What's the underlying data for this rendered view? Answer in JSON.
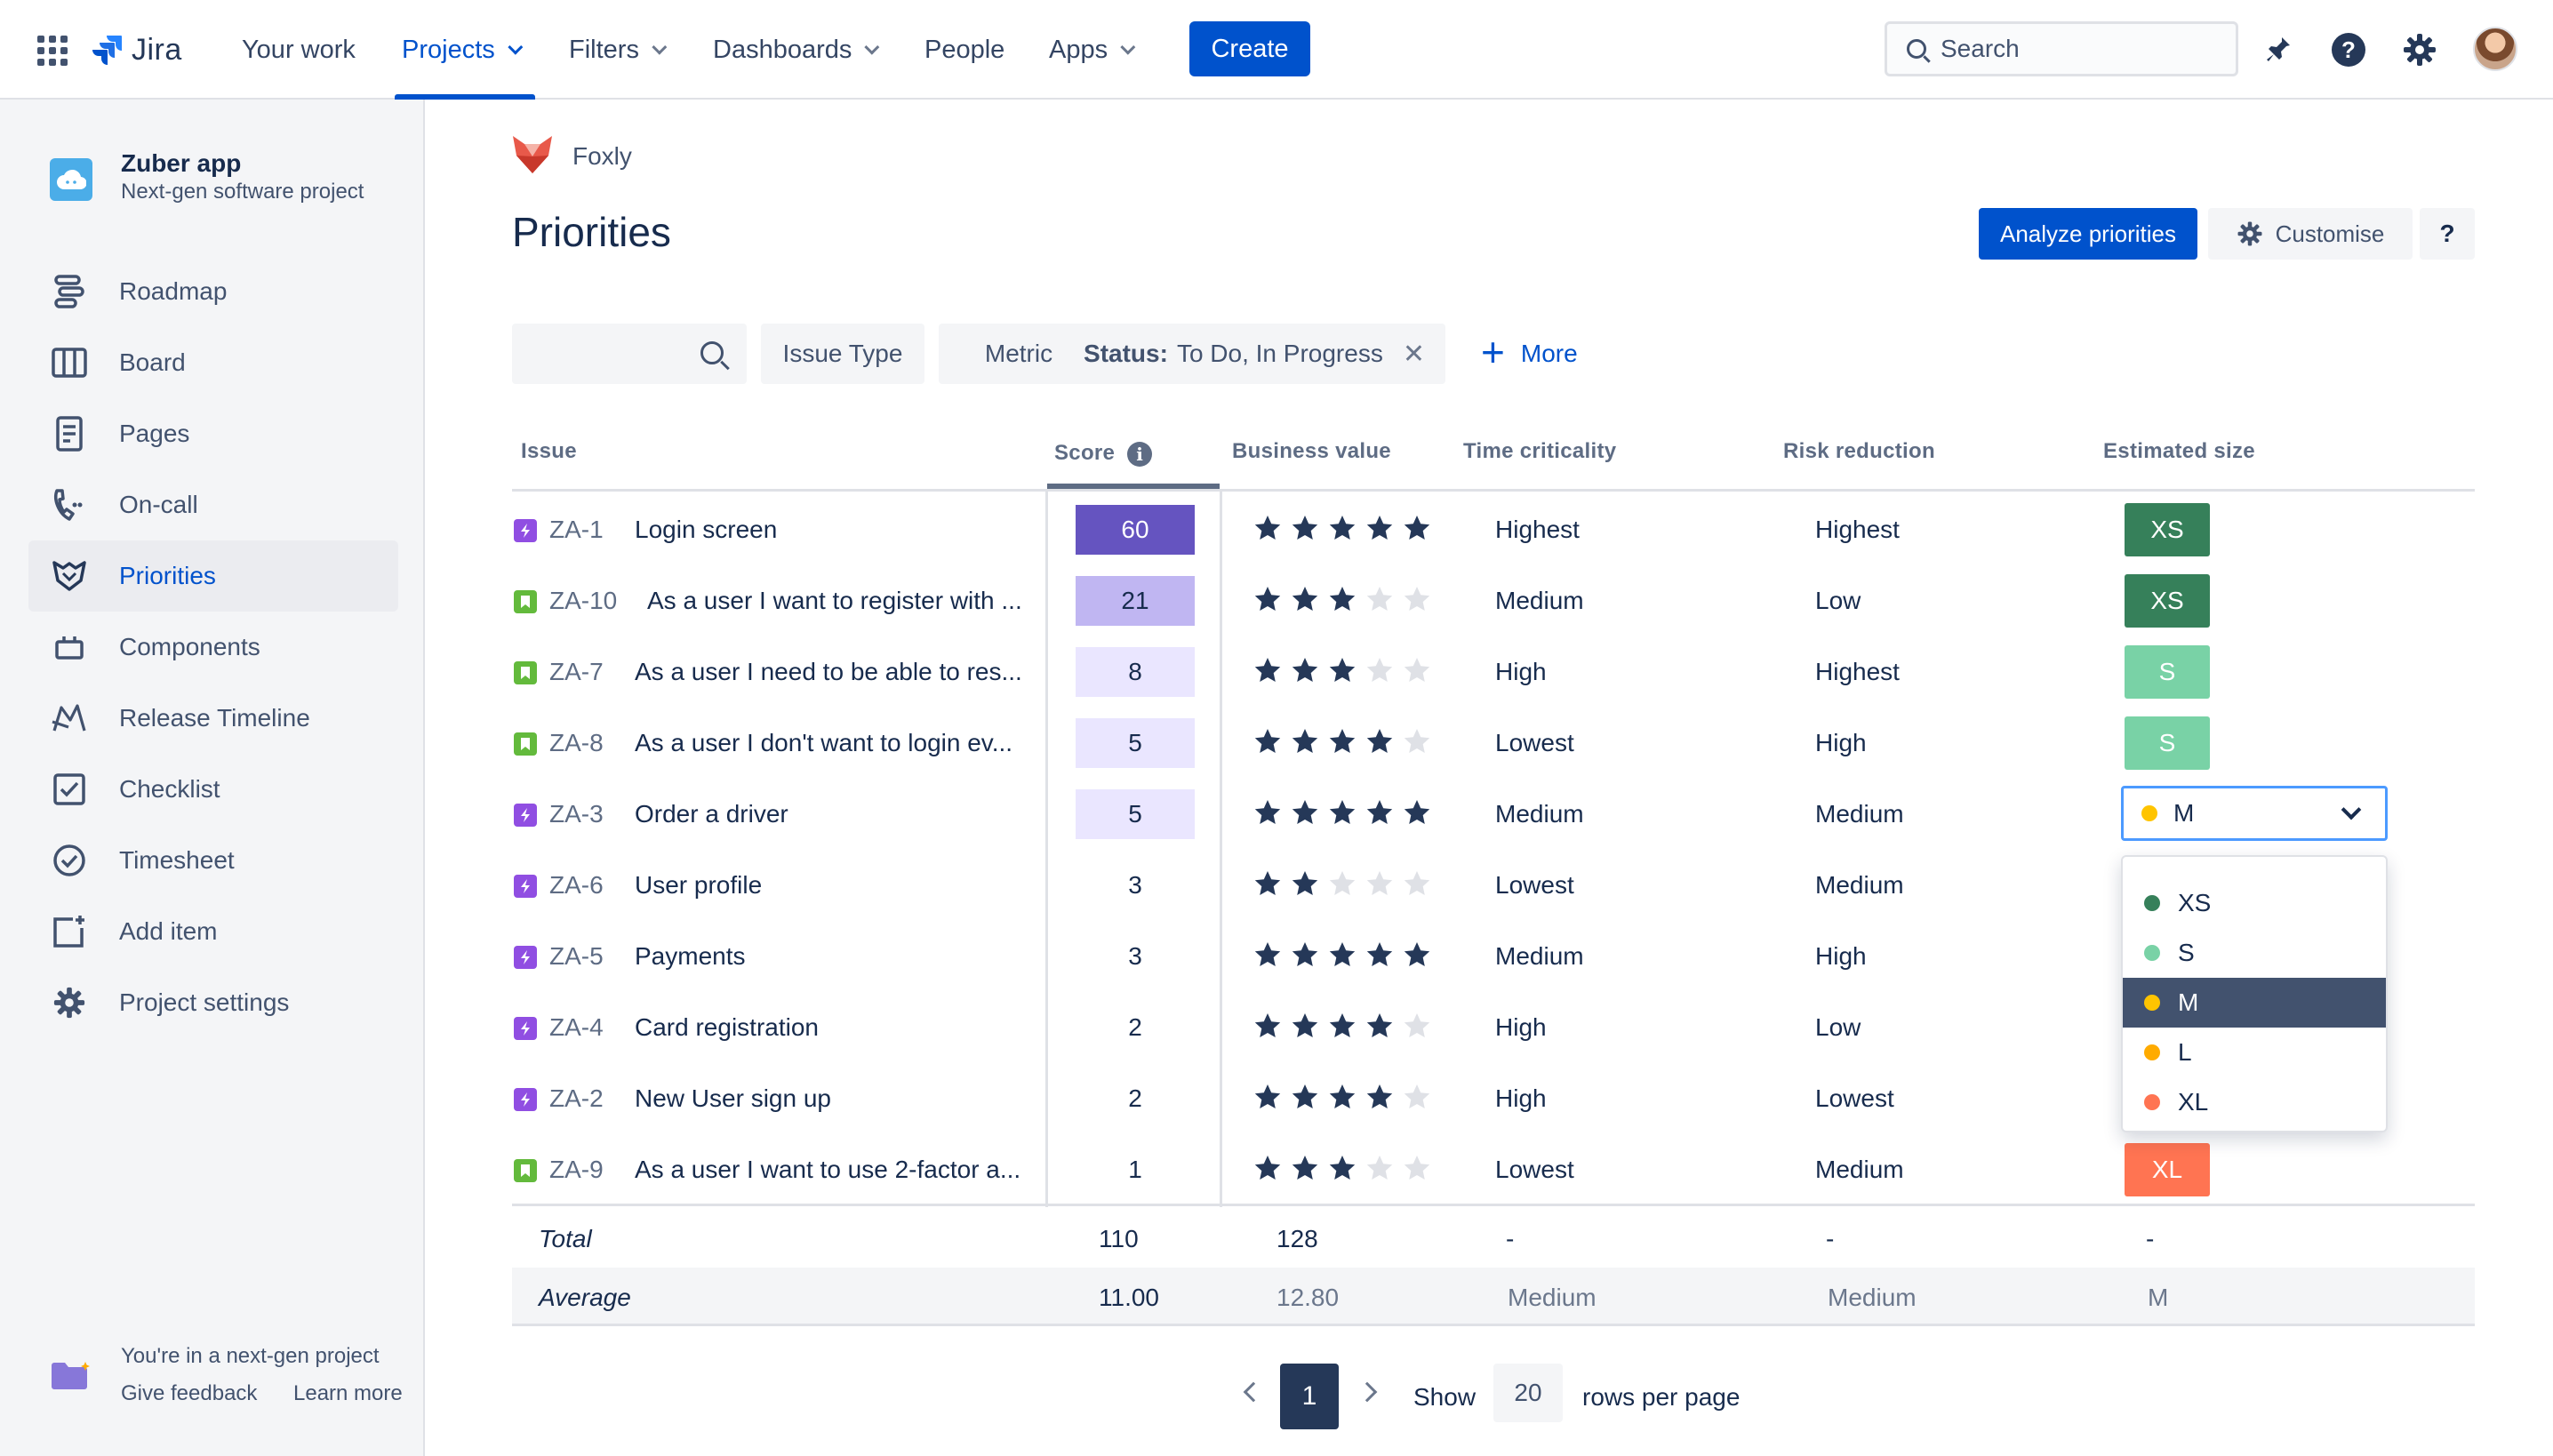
{
  "topnav": {
    "brand": "Jira",
    "items": [
      {
        "label": "Your work",
        "dropdown": false
      },
      {
        "label": "Projects",
        "dropdown": true,
        "active": true
      },
      {
        "label": "Filters",
        "dropdown": true
      },
      {
        "label": "Dashboards",
        "dropdown": true
      },
      {
        "label": "People",
        "dropdown": false
      },
      {
        "label": "Apps",
        "dropdown": true
      }
    ],
    "create_label": "Create",
    "search_placeholder": "Search",
    "icons": [
      "notifications-icon",
      "help-icon",
      "settings-icon",
      "avatar"
    ]
  },
  "sidebar": {
    "project_name": "Zuber app",
    "project_type": "Next-gen software project",
    "items": [
      {
        "label": "Roadmap",
        "icon": "roadmap-icon"
      },
      {
        "label": "Board",
        "icon": "board-icon"
      },
      {
        "label": "Pages",
        "icon": "pages-icon"
      },
      {
        "label": "On-call",
        "icon": "on-call-icon"
      },
      {
        "label": "Priorities",
        "icon": "priorities-icon",
        "active": true
      },
      {
        "label": "Components",
        "icon": "components-icon"
      },
      {
        "label": "Release Timeline",
        "icon": "release-timeline-icon"
      },
      {
        "label": "Checklist",
        "icon": "checklist-icon"
      },
      {
        "label": "Timesheet",
        "icon": "timesheet-icon"
      },
      {
        "label": "Add item",
        "icon": "add-item-icon"
      },
      {
        "label": "Project settings",
        "icon": "project-settings-icon"
      }
    ],
    "footer": {
      "text": "You're in a next-gen project",
      "feedback": "Give feedback",
      "learn": "Learn more"
    }
  },
  "main": {
    "breadcrumb": "Foxly",
    "title": "Priorities",
    "analyze_label": "Analyze priorities",
    "customise_label": "Customise",
    "help_label": "?",
    "filters": {
      "issue_type": "Issue Type",
      "metric": "Metric",
      "status_key": "Status:",
      "status_value": "To Do, In Progress",
      "more": "More"
    },
    "columns": {
      "issue": "Issue",
      "score": "Score",
      "business_value": "Business value",
      "time_criticality": "Time criticality",
      "risk_reduction": "Risk reduction",
      "estimated_size": "Estimated size"
    },
    "rows": [
      {
        "type": "subtask",
        "key": "ZA-1",
        "summary": "Login screen",
        "score": "60",
        "stars": 5,
        "time": "Highest",
        "risk": "Highest",
        "size": "XS"
      },
      {
        "type": "story",
        "key": "ZA-10",
        "summary": "As a user I want to register with ...",
        "score": "21",
        "stars": 3,
        "time": "Medium",
        "risk": "Low",
        "size": "XS"
      },
      {
        "type": "story",
        "key": "ZA-7",
        "summary": "As a user I need to be able to res...",
        "score": "8",
        "stars": 3,
        "time": "High",
        "risk": "Highest",
        "size": "S"
      },
      {
        "type": "story",
        "key": "ZA-8",
        "summary": "As a user I don't want to login ev...",
        "score": "5",
        "stars": 4,
        "time": "Lowest",
        "risk": "High",
        "size": "S"
      },
      {
        "type": "subtask",
        "key": "ZA-3",
        "summary": "Order a driver",
        "score": "5",
        "stars": 5,
        "time": "Medium",
        "risk": "Medium",
        "size": "M"
      },
      {
        "type": "subtask",
        "key": "ZA-6",
        "summary": "User profile",
        "score": "3",
        "stars": 2,
        "time": "Lowest",
        "risk": "Medium",
        "size": ""
      },
      {
        "type": "subtask",
        "key": "ZA-5",
        "summary": "Payments",
        "score": "3",
        "stars": 5,
        "time": "Medium",
        "risk": "High",
        "size": ""
      },
      {
        "type": "subtask",
        "key": "ZA-4",
        "summary": "Card registration",
        "score": "2",
        "stars": 4,
        "time": "High",
        "risk": "Low",
        "size": ""
      },
      {
        "type": "subtask",
        "key": "ZA-2",
        "summary": "New User sign up",
        "score": "2",
        "stars": 4,
        "time": "High",
        "risk": "Lowest",
        "size": ""
      },
      {
        "type": "story",
        "key": "ZA-9",
        "summary": "As a user I want to use 2-factor a...",
        "score": "1",
        "stars": 3,
        "time": "Lowest",
        "risk": "Medium",
        "size": "XL"
      }
    ],
    "size_select": {
      "value": "M"
    },
    "size_options": [
      {
        "label": "XS",
        "color": "#36805a"
      },
      {
        "label": "S",
        "color": "#79d2a6"
      },
      {
        "label": "M",
        "color": "#ffc400"
      },
      {
        "label": "L",
        "color": "#ffab00"
      },
      {
        "label": "XL",
        "color": "#ff7452"
      }
    ],
    "totals": {
      "label": "Total",
      "score": "110",
      "business_value": "128",
      "time": "-",
      "risk": "-",
      "size": "-"
    },
    "average": {
      "label": "Average",
      "score": "11.00",
      "business_value": "12.80",
      "time": "Medium",
      "risk": "Medium",
      "size": "M"
    },
    "pagination": {
      "current": "1",
      "show": "Show",
      "rows": "20",
      "rows_label": "rows per page"
    }
  },
  "colors": {
    "primary": "#0052cc",
    "size_xs": "#36805a",
    "size_s": "#79d2a6",
    "size_xl": "#ff7452",
    "score_high": "#6554c0",
    "score_mid": "#c0b6f2",
    "score_low": "#eae6ff",
    "star_on": "#253858",
    "star_off": "#dfe1e6"
  }
}
